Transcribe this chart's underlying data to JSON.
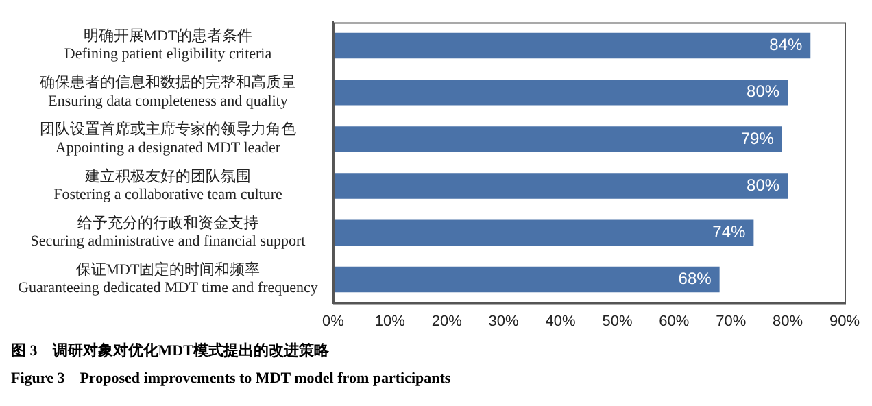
{
  "chart_data": {
    "type": "bar",
    "orientation": "horizontal",
    "categories": [
      "明确开展MDT的患者条件\nDefining patient eligibility criteria",
      "确保患者的信息和数据的完整和高质量\nEnsuring data completeness and quality",
      "团队设置首席或主席专家的领导力角色\nAppointing a designated MDT leader",
      "建立积极友好的团队氛围\nFostering a collaborative team culture",
      "给予充分的行政和资金支持\nSecuring administrative and financial support",
      "保证MDT固定的时间和频率\nGuaranteeing dedicated MDT time and frequency"
    ],
    "values": [
      84,
      80,
      79,
      80,
      74,
      68
    ],
    "value_labels": [
      "84%",
      "80%",
      "79%",
      "80%",
      "74%",
      "68%"
    ],
    "color": "#4a72a8",
    "xlim": [
      0,
      90
    ],
    "xticks": [
      {
        "value": 0,
        "label": "0%"
      },
      {
        "value": 10,
        "label": "10%"
      },
      {
        "value": 20,
        "label": "20%"
      },
      {
        "value": 30,
        "label": "30%"
      },
      {
        "value": 40,
        "label": "40%"
      },
      {
        "value": 50,
        "label": "50%"
      },
      {
        "value": 60,
        "label": "60%"
      },
      {
        "value": 70,
        "label": "70%"
      },
      {
        "value": 80,
        "label": "80%"
      },
      {
        "value": 90,
        "label": "90%"
      }
    ],
    "grid": false,
    "legend": false,
    "annotations": [
      "图 3　调研对象对优化MDT模式提出的改进策略",
      "Figure 3　Proposed improvements to MDT model from participants"
    ]
  }
}
